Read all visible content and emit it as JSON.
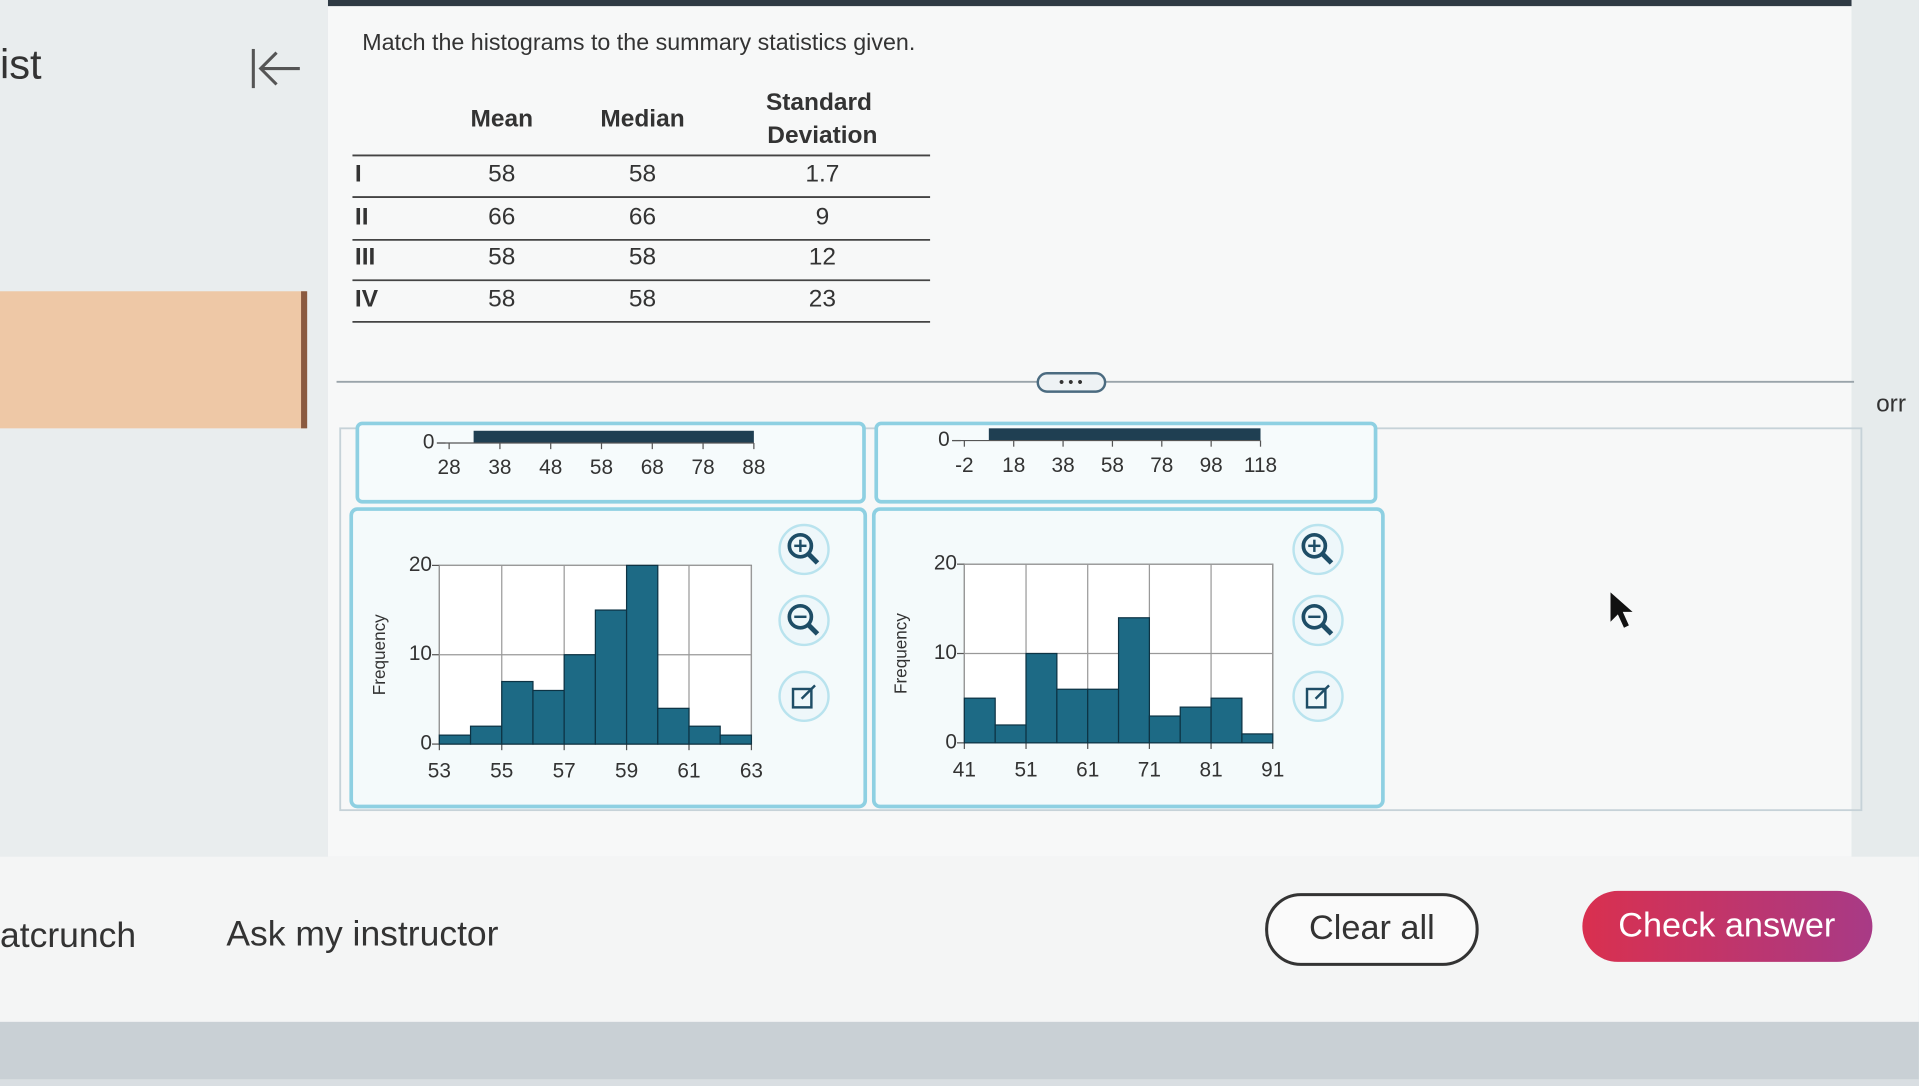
{
  "sidebar": {
    "title_fragment": "ist",
    "footer_link": "atcrunch"
  },
  "question": "Match the histograms to the summary statistics given.",
  "table": {
    "header": [
      "Mean",
      "Median",
      "Standard Deviation"
    ],
    "rows": [
      [
        "I",
        58,
        58,
        1.7
      ],
      [
        "II",
        66,
        66,
        9
      ],
      [
        "III",
        58,
        58,
        12
      ],
      [
        "IV",
        58,
        58,
        23
      ]
    ]
  },
  "right_edge_fragment": "orr",
  "partial_histograms": [
    {
      "xlim": [
        28,
        88
      ],
      "xticks": [
        28,
        38,
        48,
        58,
        68,
        78,
        88
      ],
      "yticks": [
        0
      ]
    },
    {
      "xlim": [
        -2,
        118
      ],
      "xticks": [
        -2,
        18,
        38,
        58,
        78,
        98,
        118
      ],
      "yticks": [
        0
      ]
    }
  ],
  "histograms": [
    {
      "type": "histogram",
      "y_label": "Frequency",
      "color": "#1d6a85",
      "bins": [
        53,
        54,
        55,
        56,
        57,
        58,
        59,
        60,
        61,
        62,
        63
      ],
      "counts": [
        1,
        2,
        7,
        6,
        10,
        15,
        20,
        4,
        2,
        1
      ],
      "xlim": [
        53,
        63
      ],
      "xticks": [
        53,
        55,
        57,
        59,
        61,
        63
      ],
      "ylim": [
        0,
        20
      ],
      "yticks": [
        0,
        10,
        20
      ],
      "grid": true
    },
    {
      "type": "histogram",
      "y_label": "Frequency",
      "color": "#1d6a85",
      "bins": [
        41,
        46,
        51,
        56,
        61,
        66,
        71,
        76,
        81,
        86,
        91
      ],
      "counts": [
        5,
        2,
        10,
        6,
        6,
        14,
        3,
        4,
        5,
        1
      ],
      "xlim": [
        41,
        91
      ],
      "xticks": [
        41,
        51,
        61,
        71,
        81,
        91
      ],
      "ylim": [
        0,
        20
      ],
      "yticks": [
        0,
        10,
        20
      ],
      "grid": true
    }
  ],
  "footer": {
    "ask": "Ask my instructor",
    "clear": "Clear all",
    "check": "Check answer"
  }
}
